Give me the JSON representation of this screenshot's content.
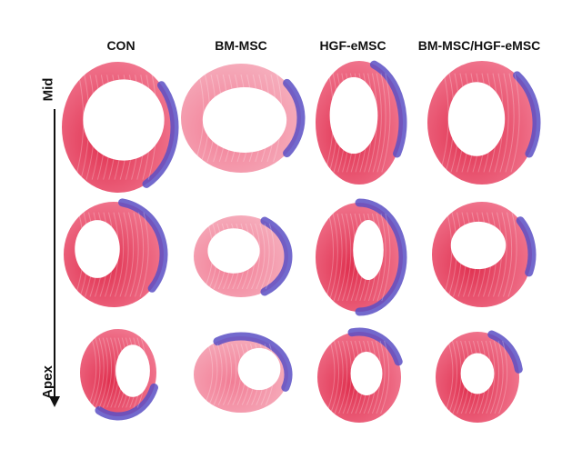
{
  "columns": [
    {
      "label": "CON"
    },
    {
      "label": "BM-MSC"
    },
    {
      "label": "HGF-eMSC"
    },
    {
      "label": "BM-MSC/HGF-eMSC"
    }
  ],
  "axis": {
    "top_label": "Mid",
    "bottom_label": "Apex"
  },
  "colors": {
    "tissue_red": "#e0304f",
    "tissue_pink": "#f27d95",
    "fibrosis_blue": "#5b4fc4",
    "cavity": "#ffffff",
    "text": "#111111"
  }
}
